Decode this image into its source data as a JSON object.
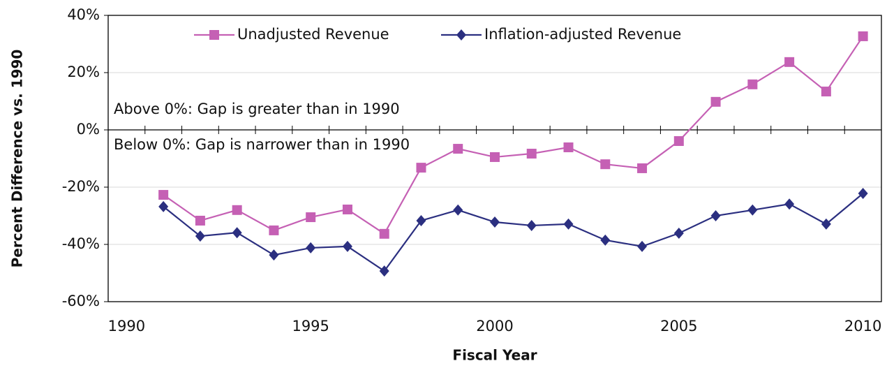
{
  "chart_data": {
    "type": "line",
    "x_label": "Fiscal Year",
    "y_label": "Percent Difference vs. 1990",
    "annotations": [
      "Above 0%: Gap is greater than in 1990",
      "Below 0%: Gap is narrower than in 1990"
    ],
    "x": [
      1991,
      1992,
      1993,
      1994,
      1995,
      1996,
      1997,
      1998,
      1999,
      2000,
      2001,
      2002,
      2003,
      2004,
      2005,
      2006,
      2007,
      2008,
      2009,
      2010
    ],
    "series": [
      {
        "name": "Unadjusted Revenue",
        "color": "#c560b4",
        "marker": "square",
        "values": [
          -22.7,
          -31.7,
          -28.0,
          -35.1,
          -30.5,
          -27.8,
          -36.3,
          -13.2,
          -6.6,
          -9.5,
          -8.3,
          -6.1,
          -12.0,
          -13.4,
          -3.9,
          9.8,
          15.9,
          23.7,
          13.4,
          32.7
        ]
      },
      {
        "name": "Inflation-adjusted Revenue",
        "color": "#2b2f80",
        "marker": "diamond",
        "values": [
          -26.8,
          -37.1,
          -35.9,
          -43.7,
          -41.2,
          -40.7,
          -49.3,
          -31.7,
          -28.0,
          -32.2,
          -33.4,
          -32.9,
          -38.5,
          -40.7,
          -36.1,
          -30.0,
          -28.0,
          -25.9,
          -32.9,
          -22.2
        ]
      }
    ],
    "xlim": [
      1989.5,
      2010.5
    ],
    "xticks": [
      1990,
      1995,
      2000,
      2005,
      2010
    ],
    "ylim": [
      -60,
      40
    ],
    "yticks": [
      {
        "value": -60,
        "label": "-60%"
      },
      {
        "value": -40,
        "label": "-40%"
      },
      {
        "value": -20,
        "label": "-20%"
      },
      {
        "value": 0,
        "label": "0%"
      },
      {
        "value": 20,
        "label": "20%"
      },
      {
        "value": 40,
        "label": "40%"
      }
    ],
    "grid": true,
    "legend": "top"
  }
}
